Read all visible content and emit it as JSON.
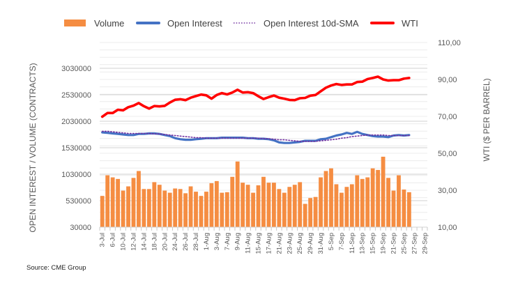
{
  "chart_data": {
    "type": "bar",
    "title": "",
    "legend": {
      "position": "top",
      "entries": [
        {
          "name": "Volume",
          "type": "bar",
          "color": "#F58D42"
        },
        {
          "name": "Open Interest",
          "type": "line",
          "color": "#4472C4"
        },
        {
          "name": "Open Interest 10d-SMA",
          "type": "dotted-line",
          "color": "#7030A0"
        },
        {
          "name": "WTI",
          "type": "line",
          "color": "#FF0000"
        }
      ]
    },
    "left_axis": {
      "label": "OPEN INTEREST / VOLUME (CONTRACTS)",
      "range": [
        30000,
        3030000
      ],
      "ticks": [
        30000,
        530000,
        1030000,
        1530000,
        2030000,
        2530000,
        3030000
      ],
      "tick_labels": [
        "30000",
        "530000",
        "1030000",
        "1530000",
        "2030000",
        "2530000",
        "3030000"
      ]
    },
    "right_axis": {
      "label": "WTI ($ PER BARREL)",
      "range": [
        10,
        110
      ],
      "ticks": [
        10,
        30,
        50,
        70,
        90,
        110
      ],
      "tick_labels": [
        "10,00",
        "30,00",
        "50,00",
        "70,00",
        "90,00",
        "110,00"
      ]
    },
    "grid": true,
    "categories": [
      "3-Jul",
      "5-Jul",
      "6-Jul",
      "7-Jul",
      "10-Jul",
      "11-Jul",
      "12-Jul",
      "13-Jul",
      "14-Jul",
      "17-Jul",
      "18-Jul",
      "19-Jul",
      "20-Jul",
      "21-Jul",
      "24-Jul",
      "25-Jul",
      "26-Jul",
      "27-Jul",
      "28-Jul",
      "31-Jul",
      "1-Aug",
      "2-Aug",
      "3-Aug",
      "4-Aug",
      "7-Aug",
      "8-Aug",
      "9-Aug",
      "10-Aug",
      "11-Aug",
      "14-Aug",
      "15-Aug",
      "16-Aug",
      "17-Aug",
      "18-Aug",
      "21-Aug",
      "22-Aug",
      "23-Aug",
      "24-Aug",
      "25-Aug",
      "28-Aug",
      "29-Aug",
      "30-Aug",
      "31-Aug",
      "1-Sep",
      "5-Sep",
      "6-Sep",
      "7-Sep",
      "8-Sep",
      "11-Sep",
      "12-Sep",
      "13-Sep",
      "14-Sep",
      "15-Sep",
      "18-Sep",
      "19-Sep",
      "20-Sep",
      "21-Sep",
      "22-Sep",
      "25-Sep",
      "26-Sep",
      "27-Sep",
      "28-Sep",
      "29-Sep"
    ],
    "shown_category_labels": [
      "3-Jul",
      "6-Jul",
      "10-Jul",
      "12-Jul",
      "14-Jul",
      "18-Jul",
      "20-Jul",
      "24-Jul",
      "26-Jul",
      "28-Jul",
      "1-Aug",
      "3-Aug",
      "7-Aug",
      "9-Aug",
      "11-Aug",
      "15-Aug",
      "17-Aug",
      "21-Aug",
      "23-Aug",
      "25-Aug",
      "29-Aug",
      "31-Aug",
      "5-Sep",
      "7-Sep",
      "11-Sep",
      "13-Sep",
      "15-Sep",
      "19-Sep",
      "21-Sep",
      "25-Sep",
      "27-Sep",
      "29-Sep"
    ],
    "series": [
      {
        "name": "Volume",
        "axis": "left",
        "values": [
          620000,
          1010000,
          970000,
          940000,
          720000,
          800000,
          960000,
          1090000,
          750000,
          750000,
          880000,
          830000,
          720000,
          680000,
          760000,
          750000,
          670000,
          800000,
          700000,
          620000,
          700000,
          860000,
          900000,
          680000,
          690000,
          980000,
          1270000,
          870000,
          830000,
          680000,
          820000,
          980000,
          870000,
          870000,
          750000,
          680000,
          790000,
          830000,
          880000,
          470000,
          580000,
          600000,
          970000,
          1090000,
          1140000,
          840000,
          680000,
          790000,
          840000,
          1010000,
          940000,
          970000,
          1140000,
          1110000,
          1360000,
          960000,
          720000,
          1010000,
          740000,
          690000,
          null,
          null,
          null
        ]
      },
      {
        "name": "Open Interest",
        "axis": "left",
        "values": [
          1820000,
          1810000,
          1800000,
          1790000,
          1780000,
          1770000,
          1770000,
          1790000,
          1790000,
          1800000,
          1800000,
          1790000,
          1770000,
          1750000,
          1710000,
          1690000,
          1680000,
          1680000,
          1690000,
          1700000,
          1710000,
          1710000,
          1710000,
          1720000,
          1720000,
          1720000,
          1720000,
          1720000,
          1710000,
          1710000,
          1700000,
          1700000,
          1690000,
          1670000,
          1630000,
          1620000,
          1620000,
          1630000,
          1640000,
          1660000,
          1660000,
          1660000,
          1690000,
          1700000,
          1730000,
          1760000,
          1780000,
          1810000,
          1790000,
          1830000,
          1790000,
          1770000,
          1750000,
          1740000,
          1740000,
          1730000,
          1760000,
          1770000,
          1760000,
          1770000,
          null,
          null,
          null
        ]
      },
      {
        "name": "Open Interest 10d-SMA",
        "axis": "left",
        "values": [
          1840000,
          1840000,
          1830000,
          1820000,
          1810000,
          1800000,
          1800000,
          1800000,
          1800000,
          1800000,
          1790000,
          1790000,
          1780000,
          1770000,
          1760000,
          1750000,
          1740000,
          1730000,
          1720000,
          1720000,
          1710000,
          1710000,
          1710000,
          1710000,
          1710000,
          1710000,
          1710000,
          1710000,
          1710000,
          1710000,
          1710000,
          1700000,
          1700000,
          1690000,
          1680000,
          1680000,
          1670000,
          1660000,
          1650000,
          1650000,
          1650000,
          1650000,
          1660000,
          1670000,
          1680000,
          1690000,
          1710000,
          1720000,
          1740000,
          1750000,
          1760000,
          1770000,
          1770000,
          1770000,
          1770000,
          1760000,
          1760000,
          1760000,
          1760000,
          1760000,
          null,
          null,
          null
        ]
      },
      {
        "name": "WTI",
        "axis": "right",
        "values": [
          69.8,
          71.8,
          71.8,
          73.6,
          73.3,
          75.0,
          75.8,
          77.2,
          75.5,
          74.2,
          75.6,
          75.4,
          75.7,
          77.5,
          79.0,
          79.3,
          78.8,
          80.1,
          81.0,
          81.8,
          81.4,
          79.6,
          81.6,
          82.6,
          81.9,
          82.9,
          84.4,
          82.9,
          83.1,
          82.6,
          80.9,
          79.4,
          80.4,
          81.3,
          80.1,
          79.6,
          78.9,
          78.8,
          79.8,
          80.0,
          81.2,
          81.6,
          83.6,
          85.5,
          86.7,
          87.5,
          87.0,
          87.3,
          87.3,
          88.6,
          88.8,
          90.2,
          90.8,
          91.5,
          90.0,
          89.4,
          89.6,
          89.6,
          90.4,
          90.8,
          null,
          null,
          null
        ]
      }
    ]
  },
  "footer": {
    "source": "Source: CME Group"
  }
}
